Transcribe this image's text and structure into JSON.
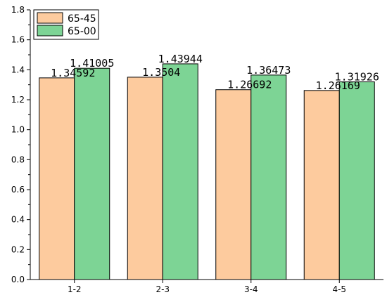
{
  "chart_data": {
    "type": "bar",
    "categories": [
      "1-2",
      "2-3",
      "3-4",
      "4-5"
    ],
    "series": [
      {
        "name": "65-45",
        "values": [
          1.34592,
          1.3504,
          1.26692,
          1.26169
        ],
        "labels": [
          "1.34592",
          "1.3504",
          "1.26692",
          "1.26169"
        ],
        "color": "#FDCB9E"
      },
      {
        "name": "65-00",
        "values": [
          1.41005,
          1.43944,
          1.36473,
          1.31926
        ],
        "labels": [
          "1.41005",
          "1.43944",
          "1.36473",
          "1.31926"
        ],
        "color": "#7DD495"
      }
    ],
    "ylim": [
      0,
      1.8
    ],
    "yticks": [
      "0.0",
      "0.2",
      "0.4",
      "0.6",
      "0.8",
      "1.0",
      "1.2",
      "1.4",
      "1.6",
      "1.8"
    ],
    "legend_position": "top-left",
    "grid": false
  }
}
